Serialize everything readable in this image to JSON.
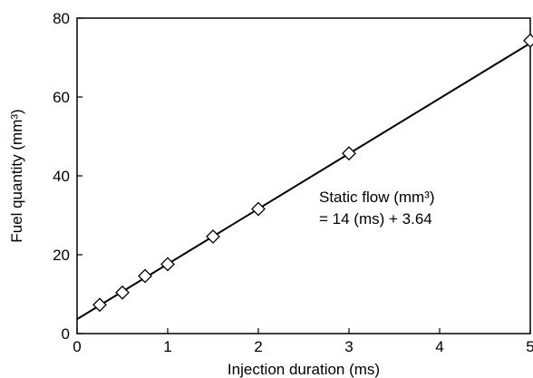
{
  "chart_data": {
    "type": "scatter",
    "title": "",
    "xlabel": "Injection duration (ms)",
    "ylabel": "Fuel quantity (mm³)",
    "xlim": [
      0,
      5
    ],
    "ylim": [
      0,
      80
    ],
    "x_ticks": [
      "0",
      "1",
      "2",
      "3",
      "4",
      "5"
    ],
    "y_ticks": [
      "0",
      "20",
      "40",
      "60",
      "80"
    ],
    "grid": false,
    "legend": "none",
    "series": [
      {
        "marker": "diamond",
        "x": [
          0.25,
          0.5,
          0.75,
          1.0,
          1.5,
          2.0,
          3.0,
          5.0
        ],
        "y": [
          7.3,
          10.4,
          14.6,
          17.6,
          24.6,
          31.6,
          45.7,
          74.3
        ]
      }
    ],
    "fit_line": {
      "slope": 14,
      "intercept": 3.64,
      "x_range": [
        0,
        5
      ]
    },
    "annotation": {
      "line1": "Static flow (mm³)",
      "line2": "= 14 (ms) + 3.64"
    }
  }
}
